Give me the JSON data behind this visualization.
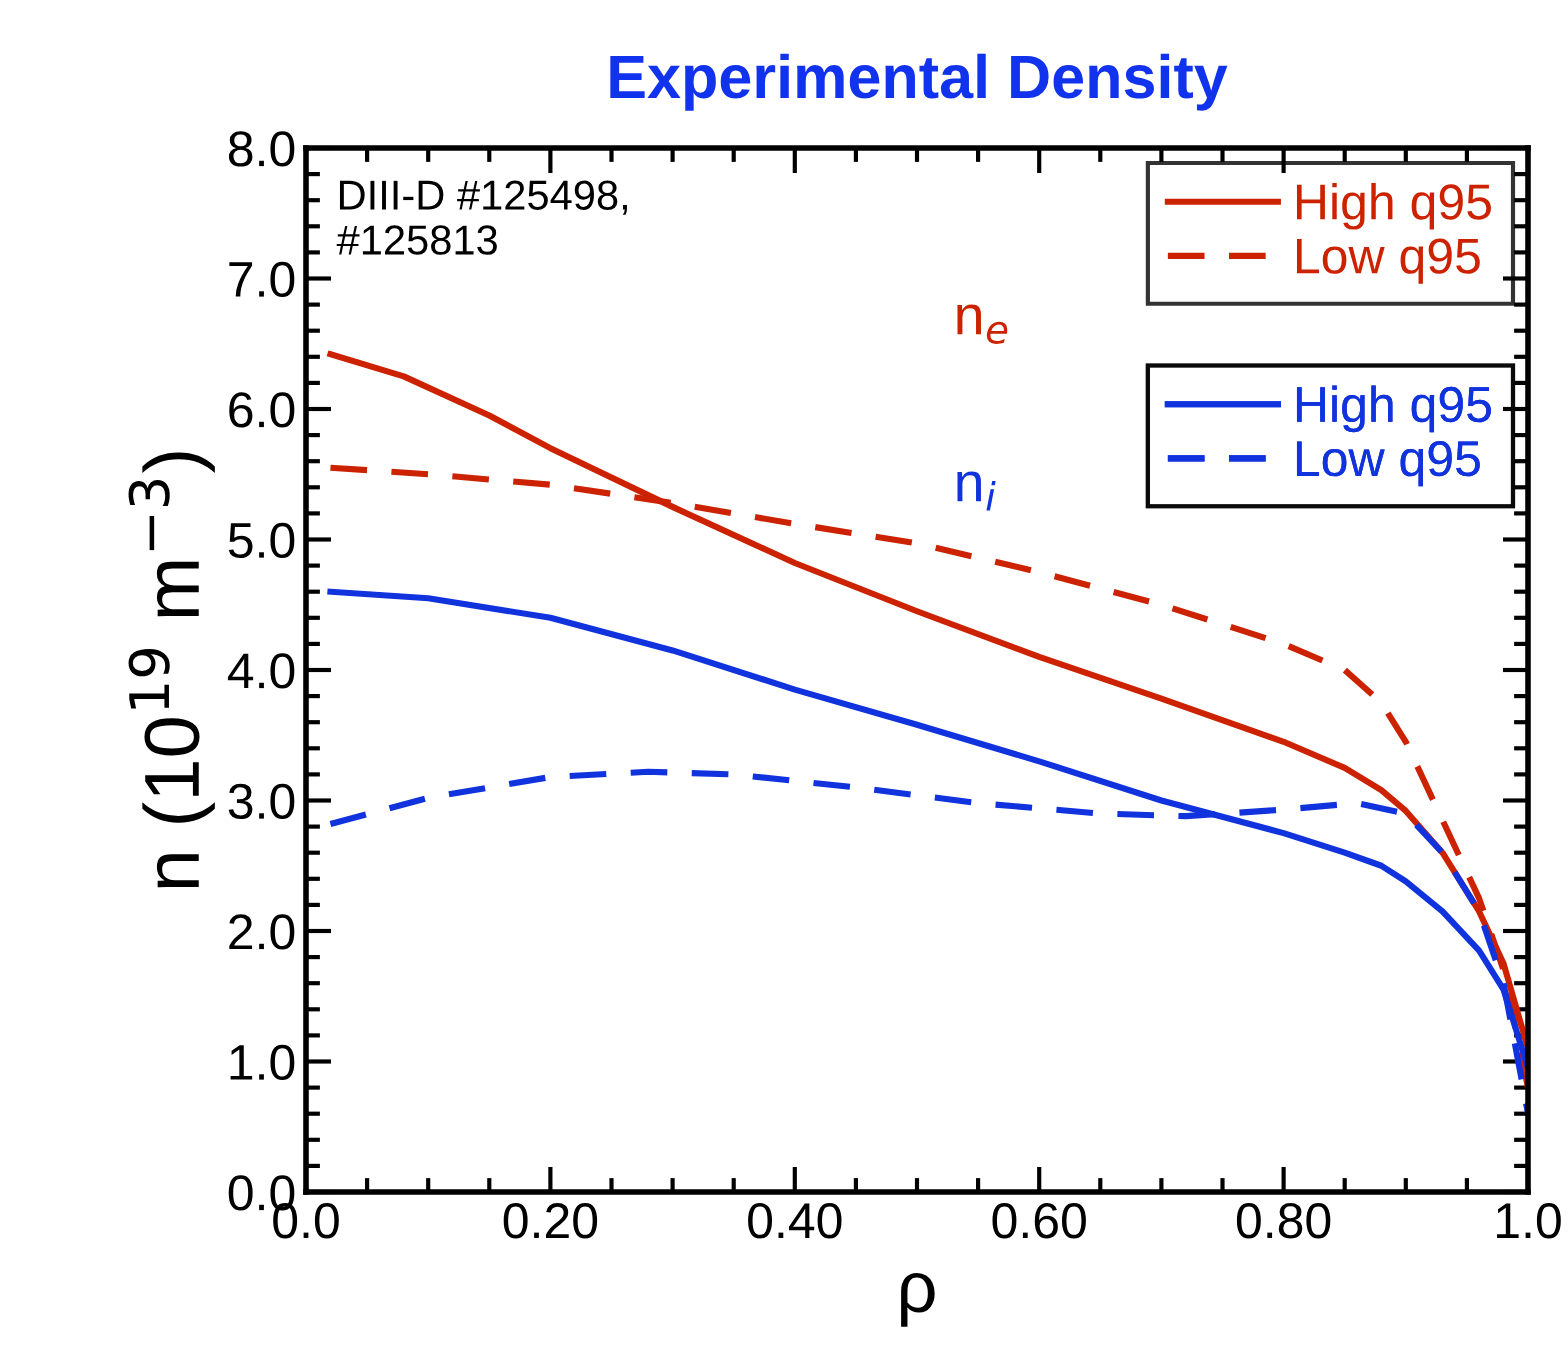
{
  "chart_data": {
    "type": "line",
    "title": "Experimental Density",
    "xlabel": "ρ",
    "ylabel": "n (10$^{19}$ m$^{−3}$)",
    "annotations": [
      "DIII-D #125498,\n#125813",
      "n$_{e}$",
      "n$_{i}$"
    ],
    "xlim": [
      0,
      1
    ],
    "ylim": [
      0,
      8
    ],
    "xticks": [
      {
        "value": 0,
        "label": "0.0"
      },
      {
        "value": 0.2,
        "label": "0.20"
      },
      {
        "value": 0.4,
        "label": "0.40"
      },
      {
        "value": 0.6,
        "label": "0.60"
      },
      {
        "value": 0.8,
        "label": "0.80"
      },
      {
        "value": 1,
        "label": "1.0"
      }
    ],
    "yticks": [
      {
        "value": 0,
        "label": "0.0"
      },
      {
        "value": 1,
        "label": "1.0"
      },
      {
        "value": 2,
        "label": "2.0"
      },
      {
        "value": 3,
        "label": "3.0"
      },
      {
        "value": 4,
        "label": "4.0"
      },
      {
        "value": 5,
        "label": "5.0"
      },
      {
        "value": 6,
        "label": "6.0"
      },
      {
        "value": 7,
        "label": "7.0"
      },
      {
        "value": 8,
        "label": "8.0"
      }
    ],
    "grid": false,
    "legend": "top right",
    "series": [
      {
        "name": "High q95",
        "color": "#cc2200",
        "line_style": "solid",
        "x": [
          0.02,
          0.08,
          0.15,
          0.2,
          0.3,
          0.4,
          0.5,
          0.6,
          0.7,
          0.8,
          0.85,
          0.88,
          0.9,
          0.93,
          0.96,
          0.98,
          1.0
        ],
        "values": [
          6.42,
          6.25,
          5.95,
          5.7,
          5.25,
          4.82,
          4.45,
          4.1,
          3.78,
          3.45,
          3.25,
          3.08,
          2.92,
          2.6,
          2.15,
          1.75,
          1.1
        ]
      },
      {
        "name": "Low q95",
        "color": "#cc2200",
        "line_style": "dashed",
        "x": [
          0.02,
          0.1,
          0.2,
          0.3,
          0.4,
          0.5,
          0.6,
          0.7,
          0.8,
          0.85,
          0.88,
          0.9,
          0.93,
          0.96,
          0.98,
          1.0
        ],
        "values": [
          5.55,
          5.5,
          5.42,
          5.28,
          5.12,
          4.97,
          4.75,
          4.5,
          4.2,
          4.0,
          3.75,
          3.45,
          2.85,
          2.25,
          1.7,
          0.8
        ]
      },
      {
        "name": "High q95",
        "color": "#1133dd",
        "line_style": "solid",
        "x": [
          0.02,
          0.1,
          0.2,
          0.3,
          0.4,
          0.5,
          0.6,
          0.7,
          0.8,
          0.85,
          0.88,
          0.9,
          0.93,
          0.96,
          0.98,
          1.0
        ],
        "values": [
          4.6,
          4.55,
          4.4,
          4.15,
          3.85,
          3.58,
          3.3,
          3.0,
          2.75,
          2.6,
          2.5,
          2.38,
          2.15,
          1.85,
          1.55,
          0.95
        ]
      },
      {
        "name": "Low q95",
        "color": "#1133dd",
        "line_style": "dashed",
        "x": [
          0.02,
          0.1,
          0.2,
          0.28,
          0.35,
          0.45,
          0.55,
          0.65,
          0.72,
          0.8,
          0.86,
          0.9,
          0.93,
          0.96,
          0.98,
          1.0
        ],
        "values": [
          2.82,
          3.02,
          3.18,
          3.22,
          3.2,
          3.1,
          2.98,
          2.9,
          2.88,
          2.93,
          2.98,
          2.9,
          2.6,
          2.15,
          1.6,
          0.6
        ]
      }
    ]
  }
}
